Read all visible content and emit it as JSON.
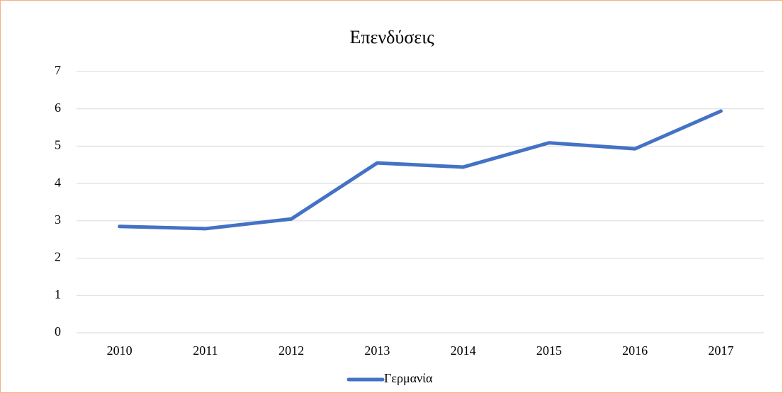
{
  "chart_data": {
    "type": "line",
    "title": "Επενδύσεις",
    "categories": [
      "2010",
      "2011",
      "2012",
      "2013",
      "2014",
      "2015",
      "2016",
      "2017"
    ],
    "series": [
      {
        "name": "Γερμανία",
        "color": "#4472c4",
        "values": [
          2.85,
          2.79,
          3.05,
          4.55,
          4.44,
          5.09,
          4.93,
          5.94
        ]
      }
    ],
    "ylim": [
      0,
      7
    ],
    "yticks": [
      0,
      1,
      2,
      3,
      4,
      5,
      6,
      7
    ],
    "grid": true,
    "legend": "bottom"
  }
}
